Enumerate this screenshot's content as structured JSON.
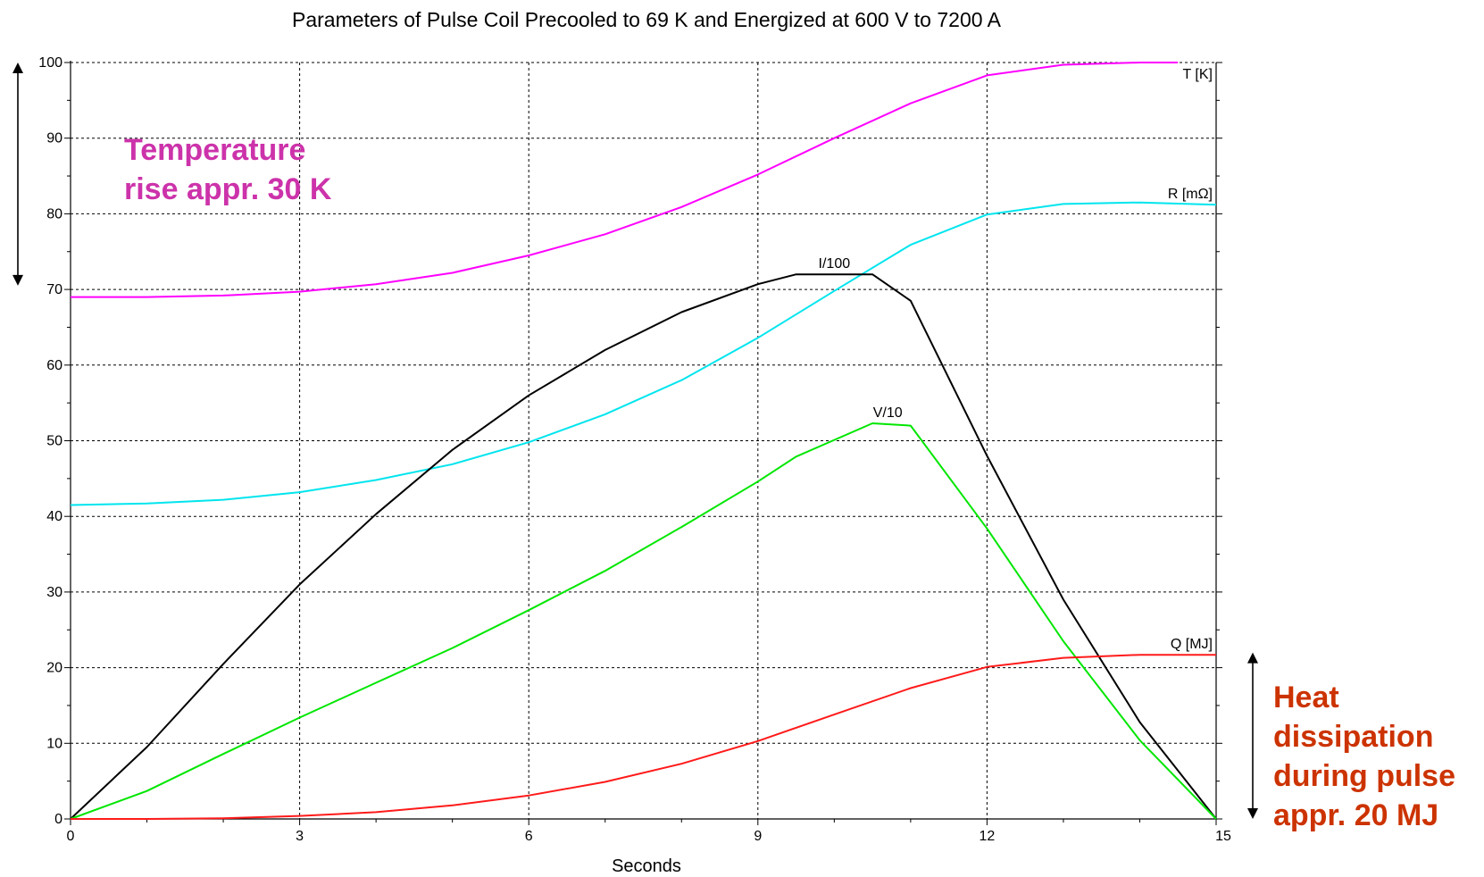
{
  "chart_data": {
    "type": "line",
    "title": "Parameters of Pulse Coil Precooled to 69 K and Energized at 600 V to 7200 A",
    "xlabel": "Seconds",
    "ylabel": "",
    "xlim": [
      0,
      15
    ],
    "ylim": [
      0,
      100
    ],
    "x_ticks": [
      0,
      3,
      6,
      9,
      12,
      15
    ],
    "y_ticks": [
      0,
      10,
      20,
      30,
      40,
      50,
      60,
      70,
      80,
      90,
      100
    ],
    "grid": true,
    "legend": "none",
    "series": [
      {
        "name": "T [K]",
        "color": "#ff00ff",
        "label_anchor": [
          15,
          100
        ],
        "x": [
          0,
          1,
          2,
          3,
          4,
          5,
          6,
          7,
          8,
          9,
          10,
          11,
          12,
          13,
          14,
          14.5
        ],
        "y": [
          69,
          69,
          69.2,
          69.7,
          70.7,
          72.2,
          74.5,
          77.3,
          80.9,
          85.2,
          90,
          94.6,
          98.3,
          99.7,
          100,
          100
        ]
      },
      {
        "name": "R [mΩ]",
        "color": "#00e5ee",
        "label_anchor": [
          15,
          81.2
        ],
        "x": [
          0,
          1,
          2,
          3,
          4,
          5,
          6,
          7,
          8,
          9,
          10,
          11,
          12,
          13,
          14,
          15
        ],
        "y": [
          41.5,
          41.7,
          42.2,
          43.2,
          44.8,
          46.9,
          49.8,
          53.5,
          58,
          63.6,
          69.8,
          75.9,
          79.9,
          81.3,
          81.5,
          81.2
        ]
      },
      {
        "name": "I/100",
        "color": "#000000",
        "label_anchor": [
          10,
          72
        ],
        "x": [
          0,
          1,
          2,
          3,
          4,
          5,
          6,
          7,
          8,
          9,
          9.5,
          10.5,
          11,
          12,
          13,
          14,
          15
        ],
        "y": [
          0,
          9.5,
          20.5,
          31,
          40.3,
          48.8,
          56,
          62,
          67,
          70.7,
          72,
          72,
          68.5,
          48,
          29,
          12.8,
          0
        ]
      },
      {
        "name": "V/10",
        "color": "#00e600",
        "label_anchor": [
          10.7,
          52.3
        ],
        "x": [
          0,
          1,
          2,
          3,
          4,
          5,
          6,
          7,
          8,
          9,
          9.5,
          10.5,
          11,
          12,
          13,
          14,
          15
        ],
        "y": [
          0,
          3.7,
          8.6,
          13.4,
          18,
          22.6,
          27.6,
          32.8,
          38.6,
          44.6,
          47.9,
          52.3,
          52,
          38.4,
          23.5,
          10.4,
          0
        ]
      },
      {
        "name": "Q [MJ]",
        "color": "#ff1a1a",
        "label_anchor": [
          15,
          21.7
        ],
        "x": [
          0,
          1,
          2,
          3,
          4,
          5,
          6,
          7,
          8,
          9,
          10,
          11,
          12,
          13,
          14,
          15
        ],
        "y": [
          0,
          0,
          0.1,
          0.4,
          0.9,
          1.8,
          3.1,
          4.9,
          7.3,
          10.3,
          13.8,
          17.3,
          20.1,
          21.3,
          21.7,
          21.7
        ]
      }
    ],
    "annotations": [
      {
        "id": "temperature-rise",
        "lines": [
          "Temperature",
          "rise appr. 30 K"
        ],
        "color": "#cc33aa",
        "arrow_range": [
          70.5,
          100
        ]
      },
      {
        "id": "heat-dissipation",
        "lines": [
          "Heat",
          "dissipation",
          "during pulse",
          "appr. 20 MJ"
        ],
        "color": "#cc3300",
        "arrow_range": [
          0,
          22
        ]
      }
    ]
  }
}
